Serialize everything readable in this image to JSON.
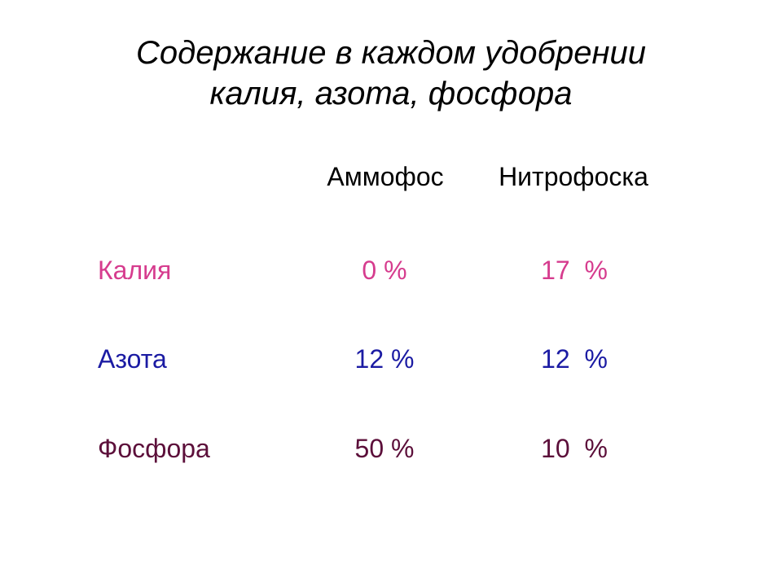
{
  "title": {
    "line1": "Содержание в каждом удобрении",
    "line2": "калия, азота, фосфора"
  },
  "table": {
    "columns": [
      "Аммофос",
      "Нитрофоска"
    ],
    "rows": [
      {
        "label": "Калия",
        "values": [
          "0 %",
          "17  %"
        ],
        "color": "#d63c8e"
      },
      {
        "label": "Азота",
        "values": [
          "12 %",
          "12  %"
        ],
        "color": "#1b1ba3"
      },
      {
        "label": "Фосфора",
        "values": [
          "50 %",
          "10  %"
        ],
        "color": "#5c0f3a"
      }
    ]
  }
}
